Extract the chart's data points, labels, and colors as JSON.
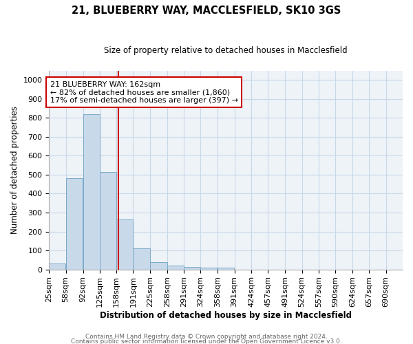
{
  "title1": "21, BLUEBERRY WAY, MACCLESFIELD, SK10 3GS",
  "title2": "Size of property relative to detached houses in Macclesfield",
  "xlabel": "Distribution of detached houses by size in Macclesfield",
  "ylabel": "Number of detached properties",
  "footer1": "Contains HM Land Registry data © Crown copyright and database right 2024.",
  "footer2": "Contains public sector information licensed under the Open Government Licence v3.0.",
  "bins": [
    25,
    58,
    92,
    125,
    158,
    191,
    225,
    258,
    291,
    324,
    358,
    391,
    424,
    457,
    491,
    524,
    557,
    590,
    624,
    657,
    690
  ],
  "counts": [
    30,
    480,
    820,
    515,
    265,
    110,
    38,
    22,
    12,
    8,
    8,
    0,
    0,
    0,
    0,
    0,
    0,
    0,
    0,
    0
  ],
  "property_size": 162,
  "property_line_color": "#cc0000",
  "bar_facecolor": "#c8d9ea",
  "bar_edgecolor": "#7aaac8",
  "annotation_text": "21 BLUEBERRY WAY: 162sqm\n← 82% of detached houses are smaller (1,860)\n17% of semi-detached houses are larger (397) →",
  "annotation_box_color": "#cc0000",
  "ylim": [
    0,
    1050
  ],
  "grid_color": "#c8d8e8",
  "background_color": "#eef3f8",
  "yticks": [
    0,
    100,
    200,
    300,
    400,
    500,
    600,
    700,
    800,
    900,
    1000
  ],
  "title1_fontsize": 10.5,
  "title2_fontsize": 8.5,
  "xlabel_fontsize": 8.5,
  "ylabel_fontsize": 8.5,
  "tick_fontsize": 8,
  "footer_fontsize": 6.5,
  "annotation_fontsize": 8
}
